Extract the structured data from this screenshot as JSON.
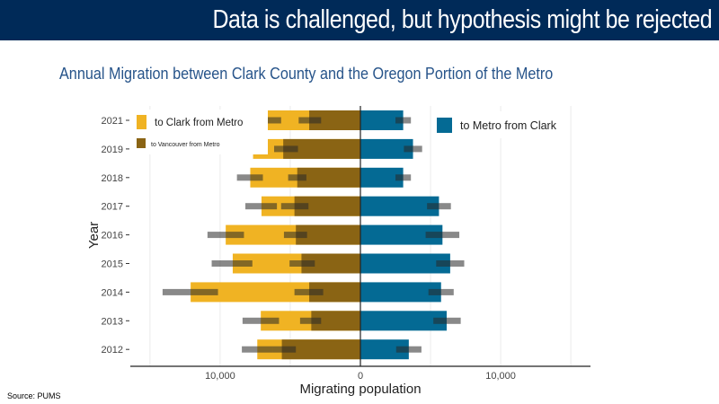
{
  "slide": {
    "title": "Data is challenged, but hypothesis might be rejected",
    "source": "Source: PUMS"
  },
  "chart_data": {
    "type": "bar",
    "orientation": "horizontal",
    "title": "Annual Migration between Clark County and the Oregon Portion of the Metro",
    "xlabel": "Migrating population",
    "ylabel": "Year",
    "xlim": [
      -16400,
      16400
    ],
    "xticks": [
      {
        "value": -10000,
        "label": "10,000"
      },
      {
        "value": 0,
        "label": "0"
      },
      {
        "value": 10000,
        "label": "10,000"
      }
    ],
    "grid": true,
    "categories": [
      "2021",
      "2019",
      "2018",
      "2017",
      "2016",
      "2015",
      "2014",
      "2013",
      "2012"
    ],
    "series": [
      {
        "name": "to Clark from Metro",
        "color": "#f0b323",
        "direction": "left",
        "values": [
          6700,
          7650,
          7850,
          7050,
          9600,
          9100,
          12100,
          7100,
          7350
        ],
        "error_low": [
          5650,
          6600,
          6950,
          5950,
          8300,
          7700,
          10150,
          5800,
          6250
        ],
        "error_high": [
          7750,
          8500,
          8800,
          8200,
          10900,
          10600,
          14100,
          8400,
          8450
        ]
      },
      {
        "name": "to Vancouver from Metro",
        "color": "#8a6414",
        "direction": "left",
        "values": [
          3650,
          5500,
          4500,
          4700,
          4600,
          4200,
          3650,
          3500,
          5600
        ],
        "error_low": [
          2800,
          4450,
          3850,
          3700,
          3800,
          3250,
          2650,
          2800,
          4600
        ],
        "error_high": [
          4400,
          6150,
          5150,
          5650,
          5450,
          5050,
          4700,
          4300,
          6250
        ]
      },
      {
        "name": "to Metro from Clark",
        "color": "#046a94",
        "direction": "right",
        "values": [
          3050,
          3750,
          3050,
          5600,
          5850,
          6400,
          5750,
          6150,
          3450
        ],
        "error_low": [
          2500,
          3100,
          2500,
          4750,
          4650,
          5400,
          4850,
          5200,
          2550
        ],
        "error_high": [
          3600,
          4400,
          3600,
          6450,
          7050,
          7400,
          6650,
          7150,
          4350
        ]
      }
    ],
    "legend": [
      {
        "label": "to Clark from Metro",
        "placement": "top-left"
      },
      {
        "label": "to Vancouver from Metro",
        "placement": "top-left"
      },
      {
        "label": "to Metro from Clark",
        "placement": "top-right"
      }
    ]
  }
}
